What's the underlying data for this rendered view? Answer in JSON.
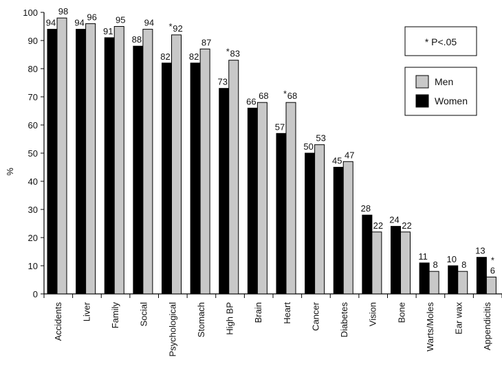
{
  "chart_data": {
    "type": "bar",
    "title": "",
    "xlabel": "",
    "ylabel": "%",
    "ylim": [
      0,
      100
    ],
    "yticks": [
      0,
      10,
      20,
      30,
      40,
      50,
      60,
      70,
      80,
      90,
      100
    ],
    "grid": false,
    "legend_position": "top-right",
    "categories": [
      "Accidents",
      "Liver",
      "Family",
      "Social",
      "Psychological",
      "Stomach",
      "High BP",
      "Brain",
      "Heart",
      "Cancer",
      "Diabetes",
      "Vision",
      "Bone",
      "Warts/Moles",
      "Ear wax",
      "Appendicitis"
    ],
    "series": [
      {
        "name": "Women",
        "color": "#000000",
        "values": [
          94,
          94,
          91,
          88,
          82,
          82,
          73,
          66,
          57,
          50,
          45,
          28,
          24,
          11,
          10,
          13
        ]
      },
      {
        "name": "Men",
        "color": "#c8c8c8",
        "values": [
          98,
          96,
          95,
          94,
          92,
          87,
          83,
          68,
          68,
          53,
          47,
          22,
          22,
          8,
          8,
          6
        ]
      }
    ],
    "significance_marker": "*",
    "significant_categories": [
      "Psychological",
      "High BP",
      "Heart",
      "Appendicitis"
    ],
    "significance_note": "* P<.05",
    "legend": [
      {
        "label": "Men",
        "color": "#c8c8c8"
      },
      {
        "label": "Women",
        "color": "#000000"
      }
    ]
  }
}
